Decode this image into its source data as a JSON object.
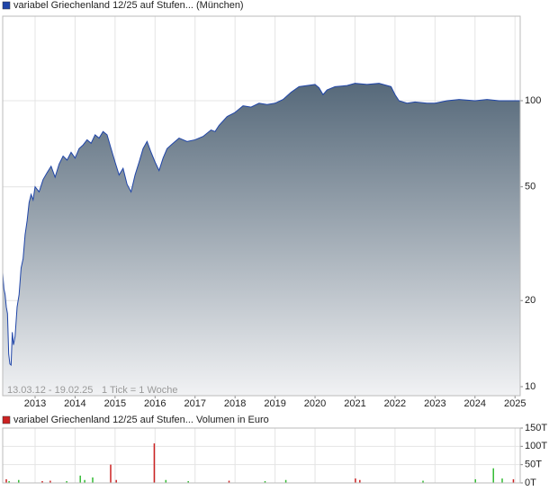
{
  "chart_data": [
    {
      "type": "line",
      "period": "13.03.12 - 19.02.25",
      "interval": "1 Tick = 1 Woche",
      "x": [
        2012.19,
        2012.22,
        2012.25,
        2012.28,
        2012.31,
        2012.34,
        2012.37,
        2012.4,
        2012.43,
        2012.46,
        2012.5,
        2012.55,
        2012.6,
        2012.65,
        2012.7,
        2012.75,
        2012.8,
        2012.85,
        2012.9,
        2012.95,
        2013.0,
        2013.1,
        2013.2,
        2013.3,
        2013.4,
        2013.5,
        2013.6,
        2013.7,
        2013.8,
        2013.9,
        2014.0,
        2014.1,
        2014.2,
        2014.3,
        2014.4,
        2014.5,
        2014.6,
        2014.7,
        2014.8,
        2014.9,
        2015.0,
        2015.1,
        2015.2,
        2015.3,
        2015.4,
        2015.5,
        2015.6,
        2015.7,
        2015.8,
        2015.9,
        2016.0,
        2016.1,
        2016.2,
        2016.3,
        2016.4,
        2016.5,
        2016.6,
        2016.8,
        2017.0,
        2017.2,
        2017.4,
        2017.5,
        2017.6,
        2017.8,
        2018.0,
        2018.2,
        2018.4,
        2018.6,
        2018.8,
        2019.0,
        2019.2,
        2019.4,
        2019.6,
        2019.8,
        2020.0,
        2020.1,
        2020.2,
        2020.3,
        2020.5,
        2020.8,
        2021.0,
        2021.3,
        2021.6,
        2021.9,
        2022.0,
        2022.1,
        2022.3,
        2022.5,
        2022.8,
        2023.0,
        2023.3,
        2023.6,
        2024.0,
        2024.3,
        2024.6,
        2024.9,
        2025.13
      ],
      "series": [
        {
          "name": "variabel Griechenland 12/25 auf Stufen... (München)",
          "color": "#1f45a8",
          "values": [
            25,
            22,
            21,
            19,
            18,
            13,
            12,
            11.9,
            15.5,
            14,
            15,
            19,
            21,
            26,
            28,
            34,
            38,
            44,
            47,
            45,
            50,
            48,
            53,
            56,
            59,
            54,
            60,
            64,
            62,
            66,
            63,
            68,
            70,
            73,
            71,
            76,
            74,
            78,
            76,
            68,
            61,
            55,
            58,
            51,
            48,
            55,
            61,
            68,
            72,
            66,
            61,
            57,
            63,
            68,
            70,
            72,
            74,
            72,
            73,
            75,
            79,
            78,
            82,
            88,
            91,
            96,
            95,
            98,
            97,
            98,
            101,
            107,
            112,
            113,
            114,
            111,
            105,
            109,
            112,
            113,
            115,
            114,
            115,
            112,
            105,
            100,
            98,
            99,
            98,
            98,
            100,
            101,
            100,
            101,
            100,
            100,
            100
          ]
        }
      ],
      "xlim": [
        2012.19,
        2025.13
      ],
      "xticks": [
        2013,
        2014,
        2015,
        2016,
        2017,
        2018,
        2019,
        2020,
        2021,
        2022,
        2023,
        2024,
        2025
      ],
      "ylim": [
        9.3,
        197.5
      ],
      "yticks": [
        10,
        20,
        50,
        100
      ],
      "log_scale": true,
      "grid": true
    },
    {
      "type": "bar",
      "x": [
        2012.28,
        2012.35,
        2012.59,
        2013.18,
        2013.38,
        2013.79,
        2014.13,
        2014.24,
        2014.44,
        2014.89,
        2015.03,
        2015.98,
        2016.27,
        2016.83,
        2017.85,
        2018.75,
        2019.27,
        2021.01,
        2021.12,
        2022.7,
        2024.01,
        2024.46,
        2024.68,
        2024.96
      ],
      "series": [
        {
          "name": "variabel Griechenland 12/25 auf Stufen... Volumen in Euro",
          "color": "#cc2222",
          "values": [
            10,
            5,
            8,
            5,
            6,
            5,
            20,
            8,
            15,
            50,
            8,
            108,
            8,
            5,
            6,
            5,
            8,
            12,
            8,
            6,
            10,
            40,
            12,
            10
          ],
          "colors": [
            "#cc2222",
            "#33bb33",
            "#33bb33",
            "#cc2222",
            "#cc2222",
            "#33bb33",
            "#33bb33",
            "#33bb33",
            "#33bb33",
            "#cc2222",
            "#cc2222",
            "#cc2222",
            "#33bb33",
            "#33bb33",
            "#cc2222",
            "#33bb33",
            "#33bb33",
            "#cc2222",
            "#cc2222",
            "#33bb33",
            "#33bb33",
            "#33bb33",
            "#33bb33",
            "#cc2222"
          ]
        }
      ],
      "xlim": [
        2012.19,
        2025.13
      ],
      "ylim": [
        0,
        150
      ],
      "yticks": [
        {
          "value": 0,
          "label": "0T"
        },
        {
          "value": 50,
          "label": "50T"
        },
        {
          "value": 100,
          "label": "100T"
        },
        {
          "value": 150,
          "label": "150T"
        }
      ],
      "grid": true
    }
  ]
}
